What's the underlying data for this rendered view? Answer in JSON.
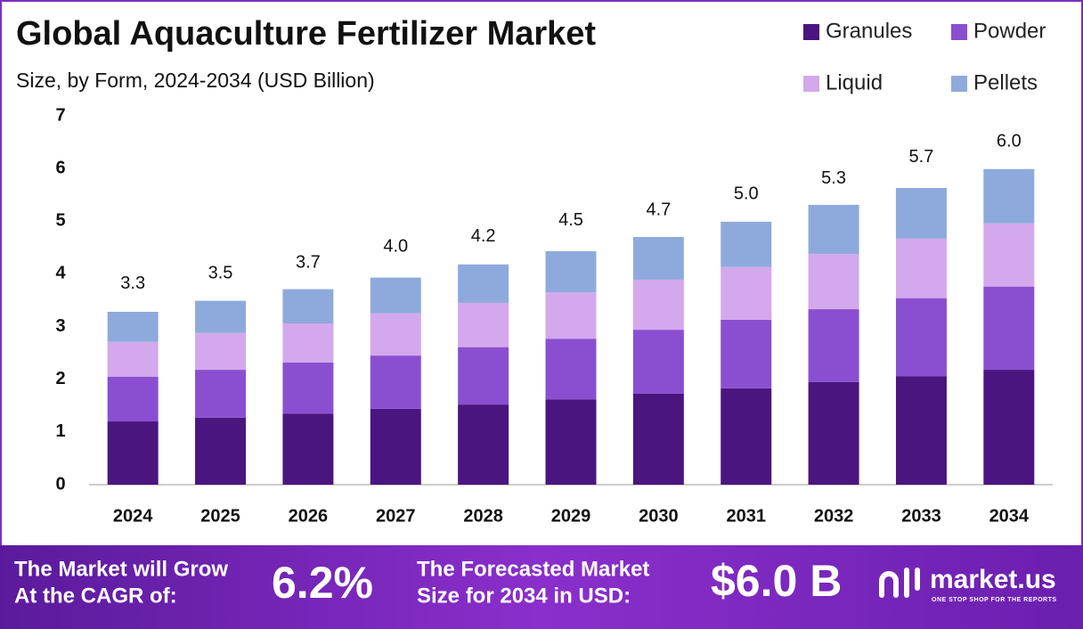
{
  "chart_data": {
    "type": "stacked-bar",
    "title": "Global Aquaculture Fertilizer Market",
    "subtitle": "Size, by Form, 2024-2034 (USD Billion)",
    "categories": [
      "2024",
      "2025",
      "2026",
      "2027",
      "2028",
      "2029",
      "2030",
      "2031",
      "2032",
      "2033",
      "2034"
    ],
    "series": [
      {
        "name": "Granules",
        "color": "#4b1580",
        "values": [
          1.2,
          1.27,
          1.35,
          1.44,
          1.52,
          1.62,
          1.73,
          1.83,
          1.95,
          2.06,
          2.18
        ]
      },
      {
        "name": "Powder",
        "color": "#8a4fd0",
        "values": [
          0.85,
          0.91,
          0.97,
          1.01,
          1.09,
          1.15,
          1.21,
          1.3,
          1.38,
          1.48,
          1.58
        ]
      },
      {
        "name": "Liquid",
        "color": "#d4a8ec",
        "values": [
          0.66,
          0.7,
          0.74,
          0.8,
          0.84,
          0.88,
          0.95,
          1.0,
          1.05,
          1.13,
          1.2
        ]
      },
      {
        "name": "Pellets",
        "color": "#8eaadc",
        "values": [
          0.57,
          0.61,
          0.65,
          0.68,
          0.73,
          0.78,
          0.81,
          0.86,
          0.93,
          0.96,
          1.03
        ]
      }
    ],
    "totals": {
      "values": [
        3.3,
        3.5,
        3.7,
        4.0,
        4.2,
        4.5,
        4.7,
        5.0,
        5.3,
        5.7,
        6.0
      ],
      "value_labels": [
        "3.3",
        "3.5",
        "3.7",
        "4.0",
        "4.2",
        "4.5",
        "4.7",
        "5.0",
        "5.3",
        "5.7",
        "6.0"
      ]
    },
    "ylim": [
      0,
      7
    ],
    "yticks": [
      0,
      1,
      2,
      3,
      4,
      5,
      6,
      7
    ],
    "grid": false,
    "legend": "top-right"
  },
  "footer": {
    "cagr_text": [
      "The Market will Grow",
      "At the CAGR of:"
    ],
    "cagr_value": "6.2%",
    "forecast_text": [
      "The Forecasted Market",
      "Size for 2034 in USD:"
    ],
    "forecast_value": "$6.0 B",
    "brand": "market.us",
    "tagline": "ONE STOP SHOP FOR THE REPORTS"
  }
}
